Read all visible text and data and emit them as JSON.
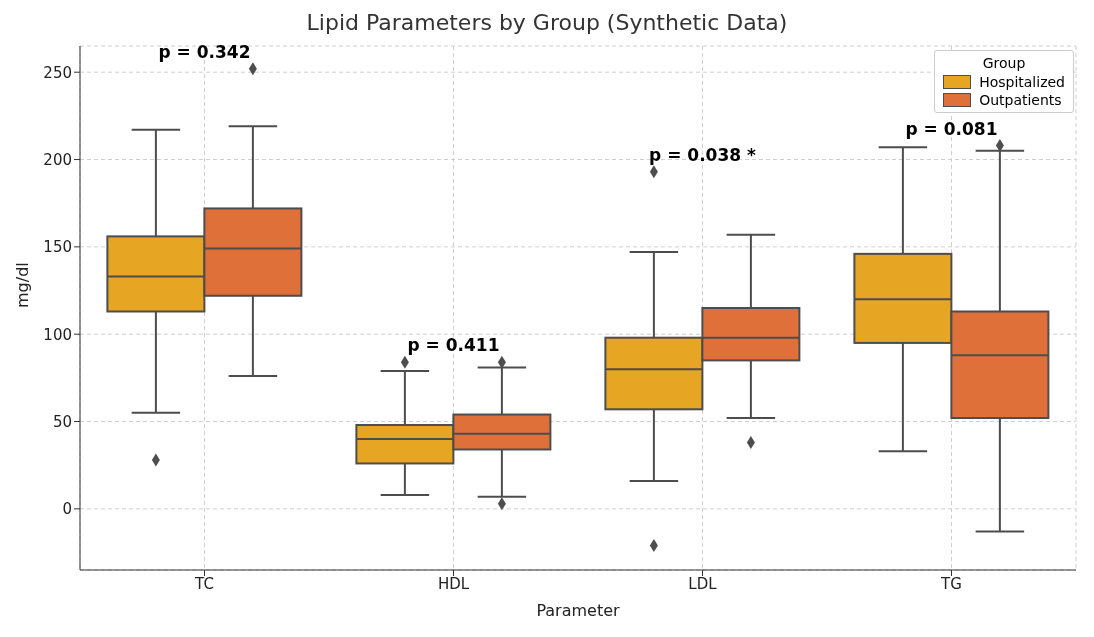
{
  "chart_data": {
    "type": "box",
    "title": "Lipid Parameters by Group (Synthetic Data)",
    "xlabel": "Parameter",
    "ylabel": "mg/dl",
    "legend_title": "Group",
    "categories": [
      "TC",
      "HDL",
      "LDL",
      "TG"
    ],
    "series": [
      {
        "name": "Hospitalized",
        "color": "#e6a523",
        "boxes": [
          {
            "low": 55,
            "q1": 113,
            "median": 133,
            "q3": 156,
            "high": 217,
            "outliers": [
              28
            ]
          },
          {
            "low": 8,
            "q1": 26,
            "median": 40,
            "q3": 48,
            "high": 79,
            "outliers": [
              84
            ]
          },
          {
            "low": 16,
            "q1": 57,
            "median": 80,
            "q3": 98,
            "high": 147,
            "outliers": [
              193,
              -21
            ]
          },
          {
            "low": 33,
            "q1": 95,
            "median": 120,
            "q3": 146,
            "high": 207
          }
        ]
      },
      {
        "name": "Outpatients",
        "color": "#e0703a",
        "boxes": [
          {
            "low": 76,
            "q1": 122,
            "median": 149,
            "q3": 172,
            "high": 219,
            "outliers": [
              252
            ]
          },
          {
            "low": 7,
            "q1": 34,
            "median": 43,
            "q3": 54,
            "high": 81,
            "outliers": [
              84,
              3
            ]
          },
          {
            "low": 52,
            "q1": 85,
            "median": 98,
            "q3": 115,
            "high": 157,
            "outliers": [
              38
            ]
          },
          {
            "low": -13,
            "q1": 52,
            "median": 88,
            "q3": 113,
            "high": 205,
            "outliers": [
              208
            ]
          }
        ]
      }
    ],
    "ylim": [
      -35,
      265
    ],
    "yticks": [
      0,
      50,
      100,
      150,
      200,
      250
    ],
    "grid": true,
    "legend": "top right",
    "marker": "diamond",
    "annotations": [
      "p = 0.342",
      "p = 0.411",
      "p = 0.038 *",
      "p = 0.081"
    ]
  }
}
